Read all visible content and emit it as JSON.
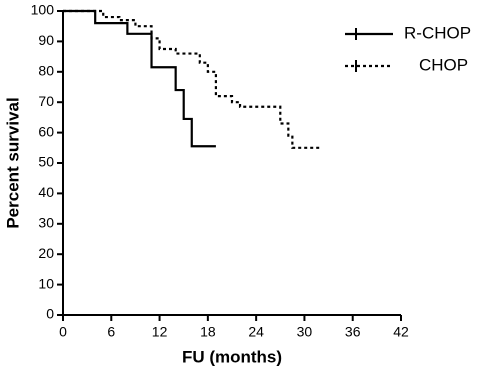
{
  "chart_data": {
    "type": "line",
    "step": true,
    "xlabel": "FU (months)",
    "ylabel": "Percent survival",
    "xlim": [
      0,
      42
    ],
    "xticks": [
      0,
      6,
      12,
      18,
      24,
      30,
      36,
      42
    ],
    "ylim": [
      0,
      100
    ],
    "yticks": [
      0,
      10,
      20,
      30,
      40,
      50,
      60,
      70,
      80,
      90,
      100
    ],
    "series": [
      {
        "name": "R-CHOP",
        "color": "#000000",
        "dash": "none",
        "x": [
          0,
          4,
          4,
          8,
          8,
          11,
          11,
          14,
          14,
          15,
          15,
          16,
          16,
          19
        ],
        "values": [
          100,
          100,
          96,
          96,
          92.5,
          92.5,
          81.5,
          81.5,
          74,
          74,
          64.5,
          64.5,
          55.5,
          55.5
        ]
      },
      {
        "name": "CHOP",
        "color": "#000000",
        "dash": "3,3",
        "x": [
          0,
          5,
          5,
          7,
          7,
          9,
          9,
          11,
          11,
          12,
          12,
          14,
          14,
          17,
          17,
          18,
          18,
          19,
          19,
          21,
          21,
          22,
          22,
          27,
          27,
          28,
          28,
          28.5,
          28.5,
          32
        ],
        "values": [
          100,
          100,
          98,
          98,
          97,
          97,
          95,
          95,
          91,
          91,
          87.5,
          87.5,
          86,
          86,
          83,
          83,
          80,
          80,
          72,
          72,
          70,
          70,
          68.5,
          68.5,
          63,
          63,
          59,
          59,
          55,
          55
        ]
      }
    ]
  }
}
